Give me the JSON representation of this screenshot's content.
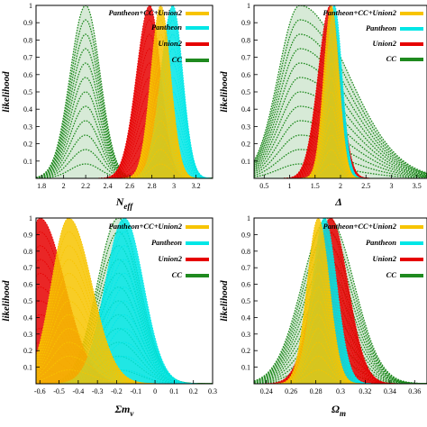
{
  "colors": {
    "Pantheon+CC+Union2": "#f7c400",
    "Pantheon": "#00e6e6",
    "Union2": "#e60000",
    "CC": "#1f8a1f"
  },
  "chart_data": [
    {
      "type": "area",
      "xlabel": "N_eff",
      "ylabel": "likelihood",
      "legend_position": "top-right",
      "xlim": [
        1.75,
        3.35
      ],
      "ylim": [
        0,
        1.0
      ],
      "xticks": [
        1.8,
        2.0,
        2.2,
        2.4,
        2.6,
        2.8,
        3.0,
        3.2
      ],
      "yticks": [
        0.1,
        0.2,
        0.3,
        0.4,
        0.5,
        0.6,
        0.7,
        0.8,
        0.9,
        1.0
      ],
      "series": [
        {
          "name": "Pantheon+CC+Union2",
          "peak": 2.88,
          "sigma_left": 0.09,
          "sigma_right": 0.09
        },
        {
          "name": "Pantheon",
          "peak": 2.99,
          "sigma_left": 0.11,
          "sigma_right": 0.09
        },
        {
          "name": "Union2",
          "peak": 2.78,
          "sigma_left": 0.12,
          "sigma_right": 0.1
        },
        {
          "name": "CC",
          "peak": 2.2,
          "sigma_left": 0.14,
          "sigma_right": 0.13
        }
      ]
    },
    {
      "type": "area",
      "xlabel": "Δ",
      "ylabel": "likelihood",
      "legend_position": "top-right",
      "xlim": [
        0.3,
        3.7
      ],
      "ylim": [
        0,
        1.0
      ],
      "xticks": [
        0.5,
        1.0,
        1.5,
        2.0,
        2.5,
        3.0,
        3.5
      ],
      "yticks": [
        0.1,
        0.2,
        0.3,
        0.4,
        0.5,
        0.6,
        0.7,
        0.8,
        0.9,
        1.0
      ],
      "series": [
        {
          "name": "Pantheon+CC+Union2",
          "peak": 1.82,
          "sigma_left": 0.15,
          "sigma_right": 0.15
        },
        {
          "name": "Pantheon",
          "peak": 1.88,
          "sigma_left": 0.17,
          "sigma_right": 0.15
        },
        {
          "name": "Union2",
          "peak": 1.8,
          "sigma_left": 0.24,
          "sigma_right": 0.2
        },
        {
          "name": "CC",
          "peak": 1.2,
          "sigma_left": 0.42,
          "sigma_right": 0.95
        }
      ]
    },
    {
      "type": "area",
      "xlabel": "Σm_ν",
      "ylabel": "likelihood",
      "legend_position": "top-right",
      "xlim": [
        -0.62,
        0.3
      ],
      "ylim": [
        0,
        1.0
      ],
      "xticks": [
        -0.6,
        -0.5,
        -0.4,
        -0.3,
        -0.2,
        -0.1,
        0.0,
        0.1,
        0.2,
        0.3
      ],
      "yticks": [
        0.1,
        0.2,
        0.3,
        0.4,
        0.5,
        0.6,
        0.7,
        0.8,
        0.9,
        1.0
      ],
      "series": [
        {
          "name": "Pantheon+CC+Union2",
          "peak": -0.45,
          "sigma_left": 0.09,
          "sigma_right": 0.12
        },
        {
          "name": "Pantheon",
          "peak": -0.16,
          "sigma_left": 0.1,
          "sigma_right": 0.1
        },
        {
          "name": "Union2",
          "peak": -0.6,
          "sigma_left": 0.08,
          "sigma_right": 0.13
        },
        {
          "name": "CC",
          "peak": -0.19,
          "sigma_left": 0.11,
          "sigma_right": 0.11
        }
      ]
    },
    {
      "type": "area",
      "xlabel": "Ω_m",
      "ylabel": "likelihood",
      "legend_position": "top-right",
      "xlim": [
        0.23,
        0.37
      ],
      "ylim": [
        0,
        1.0
      ],
      "xticks": [
        0.24,
        0.26,
        0.28,
        0.3,
        0.32,
        0.34,
        0.36
      ],
      "yticks": [
        0.1,
        0.2,
        0.3,
        0.4,
        0.5,
        0.6,
        0.7,
        0.8,
        0.9,
        1.0
      ],
      "series": [
        {
          "name": "Pantheon+CC+Union2",
          "peak": 0.282,
          "sigma_left": 0.009,
          "sigma_right": 0.009
        },
        {
          "name": "Pantheon",
          "peak": 0.287,
          "sigma_left": 0.01,
          "sigma_right": 0.01
        },
        {
          "name": "Union2",
          "peak": 0.292,
          "sigma_left": 0.014,
          "sigma_right": 0.014
        },
        {
          "name": "CC",
          "peak": 0.29,
          "sigma_left": 0.021,
          "sigma_right": 0.021
        }
      ]
    }
  ]
}
